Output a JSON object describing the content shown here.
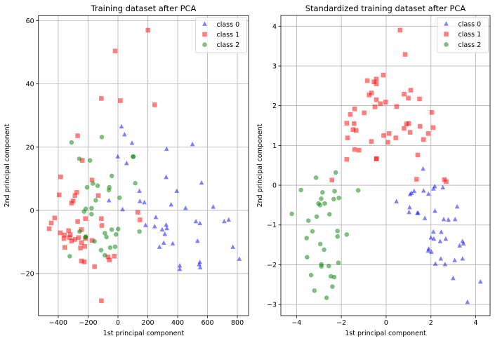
{
  "chart_data": [
    {
      "type": "scatter",
      "title": "Training dataset after PCA",
      "xlabel": "1st principal component",
      "ylabel": "2nd principal component",
      "xlim": [
        -533,
        875
      ],
      "ylim": [
        -33.3,
        61.6
      ],
      "xticks": [
        -400,
        -200,
        0,
        200,
        400,
        600,
        800
      ],
      "yticks": [
        -20,
        0,
        20,
        40,
        60
      ],
      "grid": true,
      "legend": "top-right",
      "series": [
        {
          "name": "class 0",
          "marker": "triangle",
          "color": "#0000ff",
          "points": [
            [
              24,
              26.5
            ],
            [
              44,
              24
            ],
            [
              94,
              21.3
            ],
            [
              326,
              19.4
            ],
            [
              499,
              20.9
            ],
            [
              -1,
              17
            ],
            [
              58,
              14.9
            ],
            [
              323,
              10.5
            ],
            [
              560,
              8.7
            ],
            [
              144,
              6.1
            ],
            [
              394,
              6.1
            ],
            [
              -60,
              3.1
            ],
            [
              147,
              2.9
            ],
            [
              177,
              2.5
            ],
            [
              356,
              1.8
            ],
            [
              453,
              0.7
            ],
            [
              638,
              1.1
            ],
            [
              31,
              0.3
            ],
            [
              254,
              -2.2
            ],
            [
              185,
              -4.7
            ],
            [
              246,
              -5.1
            ],
            [
              323,
              -4.6
            ],
            [
              328,
              -5.7
            ],
            [
              296,
              -6.1
            ],
            [
              314,
              -7.5
            ],
            [
              522,
              -3.5
            ],
            [
              549,
              -4.1
            ],
            [
              712,
              -3.5
            ],
            [
              742,
              -3
            ],
            [
              307,
              -10.3
            ],
            [
              367,
              -10.5
            ],
            [
              278,
              -11.6
            ],
            [
              533,
              -9.7
            ],
            [
              770,
              -11.6
            ],
            [
              813,
              -15.4
            ],
            [
              414,
              -17.5
            ],
            [
              414,
              -18.6
            ],
            [
              549,
              -16.4
            ],
            [
              544,
              -17.1
            ],
            [
              551,
              -18.1
            ]
          ]
        },
        {
          "name": "class 1",
          "marker": "square",
          "color": "#ff0000",
          "points": [
            [
              201,
              57
            ],
            [
              -19,
              50.4
            ],
            [
              -111,
              35.4
            ],
            [
              16,
              34.7
            ],
            [
              246,
              33.4
            ],
            [
              -270,
              23.6
            ],
            [
              -239,
              15.8
            ],
            [
              -384,
              10.6
            ],
            [
              -174,
              9.6
            ],
            [
              -394,
              4.9
            ],
            [
              -276,
              5.7
            ],
            [
              -288,
              4.7
            ],
            [
              -301,
              3
            ],
            [
              -311,
              2.3
            ],
            [
              -132,
              4.7
            ],
            [
              133,
              -0.6
            ],
            [
              147,
              -3
            ],
            [
              -111,
              -2.6
            ],
            [
              -108,
              -4.8
            ],
            [
              -218,
              -2.6
            ],
            [
              -270,
              -3.5
            ],
            [
              -424,
              -2.4
            ],
            [
              -447,
              -4
            ],
            [
              -461,
              -5.8
            ],
            [
              -387,
              -7.1
            ],
            [
              -331,
              -6.4
            ],
            [
              -245,
              -6.1
            ],
            [
              -359,
              -7.8
            ],
            [
              -319,
              -7.7
            ],
            [
              -325,
              -8.6
            ],
            [
              -362,
              -8.9
            ],
            [
              -288,
              -9.2
            ],
            [
              -311,
              -9.7
            ],
            [
              -264,
              -8.6
            ],
            [
              -218,
              -8.9
            ],
            [
              -245,
              -10.2
            ],
            [
              -174,
              -9.5
            ],
            [
              -356,
              -11.7
            ],
            [
              -251,
              -11.9
            ],
            [
              -223,
              -11.4
            ],
            [
              -66,
              -14.7
            ],
            [
              -25,
              -14.5
            ],
            [
              -58,
              -15.7
            ],
            [
              -245,
              -16
            ],
            [
              -226,
              -16.3
            ],
            [
              -157,
              -17.8
            ],
            [
              -111,
              -28.6
            ]
          ]
        },
        {
          "name": "class 2",
          "marker": "circle",
          "color": "#008000",
          "points": [
            [
              -311,
              21.5
            ],
            [
              -108,
              23.2
            ],
            [
              -259,
              16.3
            ],
            [
              -187,
              15.8
            ],
            [
              100,
              17
            ],
            [
              104,
              17
            ],
            [
              -41,
              10.9
            ],
            [
              -168,
              8.5
            ],
            [
              -136,
              7.8
            ],
            [
              -207,
              7.3
            ],
            [
              -58,
              7.3
            ],
            [
              -61,
              6.4
            ],
            [
              116,
              8.6
            ],
            [
              11,
              4
            ],
            [
              -149,
              3.2
            ],
            [
              -177,
              0.7
            ],
            [
              -216,
              0.5
            ],
            [
              -227,
              -0.4
            ],
            [
              -177,
              -1.2
            ],
            [
              -257,
              -6.7
            ],
            [
              -88,
              -7.2
            ],
            [
              -42,
              -6.1
            ],
            [
              1,
              -5.9
            ],
            [
              -13,
              -7.6
            ],
            [
              -77,
              -8.4
            ],
            [
              144,
              -6.7
            ],
            [
              -218,
              -8.5
            ],
            [
              -216,
              -8.3
            ],
            [
              -157,
              -9.8
            ],
            [
              -52,
              -11.8
            ],
            [
              -19,
              -11.5
            ],
            [
              -113,
              -12.6
            ],
            [
              -88,
              -14.2
            ],
            [
              -323,
              -14.5
            ]
          ]
        }
      ]
    },
    {
      "type": "scatter",
      "title": "Standardized training dataset after PCA",
      "xlabel": "1st principal component",
      "ylabel": "2nd principal component",
      "xlim": [
        -4.7,
        4.64
      ],
      "ylim": [
        -3.28,
        4.27
      ],
      "xticks": [
        -4,
        -2,
        0,
        2,
        4
      ],
      "yticks": [
        -3,
        -2,
        -1,
        0,
        1,
        2,
        3,
        4
      ],
      "grid": true,
      "legend": "top-right",
      "series": [
        {
          "name": "class 0",
          "marker": "triangle",
          "color": "#0000ff",
          "points": [
            [
              1.65,
              0.41
            ],
            [
              2.17,
              -0.03
            ],
            [
              2.11,
              -0.09
            ],
            [
              2.53,
              -0.06
            ],
            [
              1.25,
              -0.15
            ],
            [
              1.67,
              -0.14
            ],
            [
              1.13,
              -0.2
            ],
            [
              1.07,
              -0.23
            ],
            [
              1.89,
              -0.22
            ],
            [
              0.46,
              -0.41
            ],
            [
              3.17,
              -0.54
            ],
            [
              1.05,
              -0.56
            ],
            [
              1.02,
              -0.68
            ],
            [
              1.39,
              -0.7
            ],
            [
              1.43,
              -0.7
            ],
            [
              2.18,
              -0.65
            ],
            [
              1.73,
              -0.83
            ],
            [
              2.57,
              -0.86
            ],
            [
              2.78,
              -0.87
            ],
            [
              3.08,
              -0.86
            ],
            [
              2.11,
              -1.17
            ],
            [
              2.46,
              -1.18
            ],
            [
              2.0,
              -1.32
            ],
            [
              2.13,
              -1.35
            ],
            [
              2.66,
              -1.35
            ],
            [
              2.41,
              -1.41
            ],
            [
              3.41,
              -1.41
            ],
            [
              3.45,
              -1.47
            ],
            [
              3.28,
              -1.52
            ],
            [
              1.9,
              -1.6
            ],
            [
              1.88,
              -1.65
            ],
            [
              2.02,
              -1.68
            ],
            [
              2.44,
              -1.85
            ],
            [
              3.06,
              -1.89
            ],
            [
              3.41,
              -1.85
            ],
            [
              2.2,
              -1.98
            ],
            [
              2.63,
              -1.99
            ],
            [
              2.99,
              -2.34
            ],
            [
              4.21,
              -2.43
            ],
            [
              3.63,
              -2.94
            ]
          ]
        },
        {
          "name": "class 1",
          "marker": "square",
          "color": "#ff0000",
          "points": [
            [
              0.62,
              3.9
            ],
            [
              0.85,
              3.29
            ],
            [
              -0.13,
              2.77
            ],
            [
              -0.84,
              2.63
            ],
            [
              -0.44,
              2.67
            ],
            [
              -0.54,
              2.6
            ],
            [
              -0.44,
              2.55
            ],
            [
              1.1,
              2.39
            ],
            [
              0.8,
              2.29
            ],
            [
              -0.65,
              2.32
            ],
            [
              -0.76,
              2.27
            ],
            [
              0.99,
              2.19
            ],
            [
              1.49,
              2.17
            ],
            [
              -0.44,
              2.15
            ],
            [
              -0.26,
              2.05
            ],
            [
              -0.02,
              2.09
            ],
            [
              -0.5,
              1.97
            ],
            [
              0.47,
              1.98
            ],
            [
              -1.41,
              1.92
            ],
            [
              -1.6,
              1.78
            ],
            [
              -0.98,
              1.82
            ],
            [
              2.04,
              1.83
            ],
            [
              -1.76,
              1.56
            ],
            [
              -1.43,
              1.55
            ],
            [
              0.91,
              1.54
            ],
            [
              1.01,
              1.55
            ],
            [
              1.51,
              1.48
            ],
            [
              0.8,
              1.43
            ],
            [
              2.1,
              1.45
            ],
            [
              -1.48,
              1.4
            ],
            [
              -1.34,
              1.38
            ],
            [
              1.07,
              1.33
            ],
            [
              1.88,
              1.3
            ],
            [
              0.13,
              1.3
            ],
            [
              -0.11,
              1.25
            ],
            [
              0.43,
              1.19
            ],
            [
              -1.72,
              1.19
            ],
            [
              1.67,
              1.15
            ],
            [
              -0.66,
              1.1
            ],
            [
              0.08,
              1.08
            ],
            [
              -1.41,
              0.9
            ],
            [
              -1.21,
              0.88
            ],
            [
              1.41,
              0.76
            ],
            [
              -1.76,
              0.65
            ],
            [
              -0.44,
              0.66
            ],
            [
              -0.43,
              0.67
            ],
            [
              -2.42,
              0.13
            ],
            [
              1.36,
              0.15
            ],
            [
              2.6,
              0.14
            ],
            [
              2.68,
              0.09
            ]
          ]
        },
        {
          "name": "class 2",
          "marker": "circle",
          "color": "#008000",
          "points": [
            [
              -2.25,
              0.32
            ],
            [
              -3.13,
              0.19
            ],
            [
              -3.8,
              -0.12
            ],
            [
              -2.84,
              -0.18
            ],
            [
              -2.3,
              -0.15
            ],
            [
              -1.25,
              -0.13
            ],
            [
              -2.11,
              -0.32
            ],
            [
              -2.34,
              -0.35
            ],
            [
              -2.9,
              -0.34
            ],
            [
              -3.02,
              -0.46
            ],
            [
              -2.74,
              -0.46
            ],
            [
              -2.95,
              -0.5
            ],
            [
              -4.21,
              -0.72
            ],
            [
              -2.53,
              -0.73
            ],
            [
              -3.1,
              -0.79
            ],
            [
              -3.47,
              -0.89
            ],
            [
              -3.29,
              -1.16
            ],
            [
              -2.17,
              -1.15
            ],
            [
              -1.76,
              -1.24
            ],
            [
              -3.55,
              -1.33
            ],
            [
              -2.17,
              -1.29
            ],
            [
              -2.94,
              -1.48
            ],
            [
              -2.77,
              -1.62
            ],
            [
              -3.53,
              -1.81
            ],
            [
              -2.13,
              -1.95
            ],
            [
              -2.89,
              -1.99
            ],
            [
              -2.89,
              -2.04
            ],
            [
              -2.56,
              -2.03
            ],
            [
              -3.35,
              -2.26
            ],
            [
              -2.47,
              -2.29
            ],
            [
              -2.32,
              -2.31
            ],
            [
              -2.4,
              -2.55
            ],
            [
              -3.2,
              -2.65
            ],
            [
              -2.66,
              -2.83
            ]
          ]
        }
      ]
    }
  ]
}
